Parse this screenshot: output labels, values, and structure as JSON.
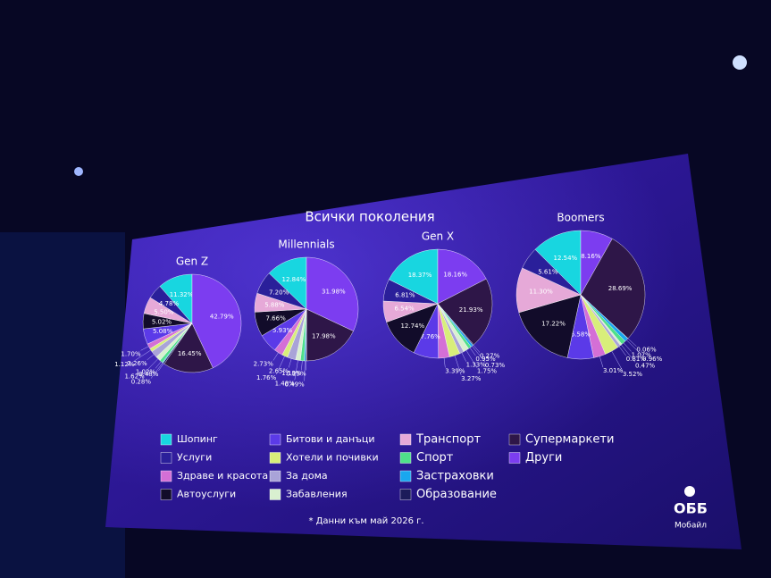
{
  "title": "Всички поколения",
  "legend": {
    "categories": [
      "Шопинг",
      "Услуги",
      "Здраве и красота",
      "Автоуслуги",
      "Битови и данъци",
      "Хотели и почивки",
      "За дома",
      "Забавления",
      "Транспорт",
      "Спорт",
      "Застраховки",
      "Образование",
      "Супермаркети",
      "Други"
    ],
    "colors": [
      "#18d6e0",
      "#2a1f9a",
      "#d46fd6",
      "#120c2a",
      "#5b3ae8",
      "#d8ee7a",
      "#a9a3d8",
      "#d9f0d0",
      "#e6a9d8",
      "#4fe08a",
      "#1aa7ef",
      "#1c1c5a",
      "#2e1648",
      "#7c3df0"
    ]
  },
  "chart_data": [
    {
      "type": "pie",
      "title": "Gen Z",
      "values": [
        11.32,
        4.78,
        1.7,
        5.02,
        5.08,
        1.12,
        2.26,
        1.62,
        5.5,
        1.02,
        0.28,
        0.48,
        16.45,
        42.79
      ],
      "value_labels": [
        "11.32%",
        "4.78%",
        "1.70%",
        "5.02%",
        "5.08%",
        "1.12%",
        "2.26%",
        "1.62%",
        "5.50%",
        "1.02%",
        "0.28%",
        "0.48%",
        "16.45%",
        "42.79%"
      ]
    },
    {
      "type": "pie",
      "title": "Millennials",
      "values": [
        12.84,
        7.2,
        2.73,
        7.66,
        5.93,
        1.76,
        2.65,
        1.48,
        5.88,
        1.18,
        0.49,
        0.25,
        17.98,
        31.98
      ],
      "value_labels": [
        "12.84%",
        "7.20%",
        "2.73%",
        "7.66%",
        "5.93%",
        "1.76%",
        "2.65%",
        "1.48%",
        "5.88%",
        "1.18%",
        "0.49%",
        "0.25%",
        "17.98%",
        "31.98%"
      ]
    },
    {
      "type": "pie",
      "title": "Gen X",
      "values": [
        18.37,
        6.81,
        3.39,
        12.74,
        7.76,
        3.27,
        1.33,
        1.75,
        6.54,
        0.95,
        0.73,
        0.27,
        21.93,
        18.16
      ],
      "value_labels": [
        "18.37%",
        "6.81%",
        "3.39%",
        "12.74%",
        "7.76%",
        "3.27%",
        "1.33%",
        "1.75%",
        "6.54%",
        "0.95%",
        "0.73%",
        "0.27%",
        "21.93%",
        "18.16%"
      ]
    },
    {
      "type": "pie",
      "title": "Boomers",
      "values": [
        12.54,
        5.61,
        3.01,
        17.22,
        6.58,
        3.52,
        0.81,
        0.47,
        11.3,
        1.07,
        0.96,
        0.06,
        28.69,
        8.16
      ],
      "value_labels": [
        "12.54%",
        "5.61%",
        "3.01%",
        "17.22%",
        "6.58%",
        "3.52%",
        "0.81%",
        "0.47%",
        "11.30%",
        "1.07%",
        "0.96%",
        "0.06%",
        "28.69%",
        "8.16%"
      ]
    }
  ],
  "footnote": "* Данни към май 2026 г.",
  "logo": {
    "name": "ОББ",
    "subtitle": "Мобайл"
  }
}
